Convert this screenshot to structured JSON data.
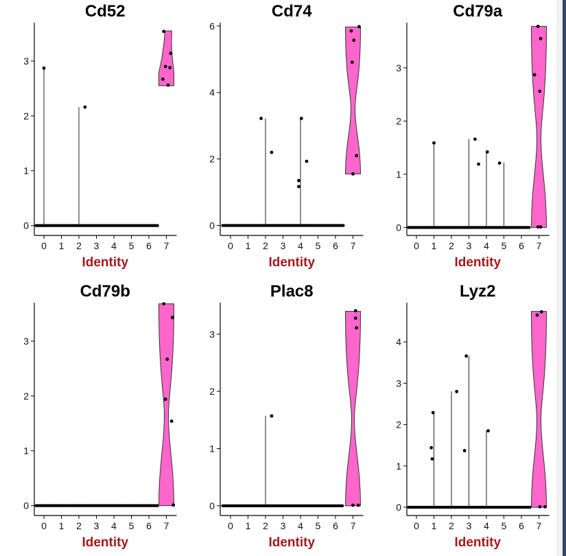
{
  "chart_data": [
    {
      "type": "violin",
      "title": "Cd52",
      "xlabel": "Identity",
      "categories": [
        "0",
        "1",
        "2",
        "3",
        "4",
        "5",
        "6",
        "7"
      ],
      "yticks": [
        0,
        1,
        2,
        3
      ],
      "ylim": [
        -0.18,
        3.7
      ],
      "fill_color": "#ff66cc",
      "lines": [
        {
          "x": 0,
          "max": 2.87
        },
        {
          "x": 2,
          "max": 2.16
        }
      ],
      "zero_extent": [
        -0.45,
        6.5
      ],
      "violin": {
        "x": 7,
        "min": 2.55,
        "max": 3.55
      },
      "points": [
        [
          0,
          2.87
        ],
        [
          2.35,
          2.16
        ],
        [
          6.85,
          3.54
        ],
        [
          7.25,
          3.14
        ],
        [
          6.95,
          2.9
        ],
        [
          7.2,
          2.88
        ],
        [
          6.8,
          2.67
        ],
        [
          7.1,
          2.56
        ]
      ]
    },
    {
      "type": "violin",
      "title": "Cd74",
      "xlabel": "Identity",
      "categories": [
        "0",
        "1",
        "2",
        "3",
        "4",
        "5",
        "6",
        "7"
      ],
      "yticks": [
        0,
        2,
        4,
        6
      ],
      "ylim": [
        -0.3,
        6.1
      ],
      "fill_color": "#ff66cc",
      "lines": [
        {
          "x": 2,
          "max": 3.22
        },
        {
          "x": 4,
          "max": 3.22
        }
      ],
      "zero_extent": [
        -0.45,
        6.45
      ],
      "violin": {
        "x": 7,
        "min": 1.55,
        "max": 5.97
      },
      "points": [
        [
          1.75,
          3.22
        ],
        [
          2.35,
          2.2
        ],
        [
          4.05,
          3.22
        ],
        [
          3.9,
          1.35
        ],
        [
          3.9,
          1.17
        ],
        [
          4.35,
          1.93
        ],
        [
          7.35,
          5.98
        ],
        [
          6.9,
          5.85
        ],
        [
          7.05,
          5.57
        ],
        [
          6.95,
          4.91
        ],
        [
          7.2,
          2.1
        ],
        [
          7.0,
          1.55
        ]
      ]
    },
    {
      "type": "violin",
      "title": "Cd79a",
      "xlabel": "Identity",
      "categories": [
        "0",
        "1",
        "2",
        "3",
        "4",
        "5",
        "6",
        "7"
      ],
      "yticks": [
        0,
        1,
        2,
        3
      ],
      "ylim": [
        -0.15,
        3.85
      ],
      "fill_color": "#ff66cc",
      "lines": [
        {
          "x": 1,
          "max": 1.59
        },
        {
          "x": 3,
          "max": 1.66
        },
        {
          "x": 4,
          "max": 1.42
        },
        {
          "x": 5,
          "max": 1.22
        }
      ],
      "zero_extent": [
        -0.45,
        6.45
      ],
      "violin": {
        "x": 7,
        "min": 0,
        "max": 3.78
      },
      "points": [
        [
          1.0,
          1.59
        ],
        [
          3.35,
          1.66
        ],
        [
          3.55,
          1.19
        ],
        [
          4.05,
          1.42
        ],
        [
          4.75,
          1.21
        ],
        [
          6.95,
          3.78
        ],
        [
          7.1,
          3.55
        ],
        [
          6.75,
          2.87
        ],
        [
          7.05,
          2.56
        ],
        [
          6.95,
          0.01
        ],
        [
          7.1,
          0.01
        ]
      ]
    },
    {
      "type": "violin",
      "title": "Cd79b",
      "xlabel": "Identity",
      "categories": [
        "0",
        "1",
        "2",
        "3",
        "4",
        "5",
        "6",
        "7"
      ],
      "yticks": [
        0,
        1,
        2,
        3
      ],
      "ylim": [
        -0.18,
        3.7
      ],
      "fill_color": "#ff66cc",
      "lines": [],
      "zero_extent": [
        -0.45,
        6.5
      ],
      "violin": {
        "x": 7,
        "min": 0,
        "max": 3.68
      },
      "points": [
        [
          6.85,
          3.68
        ],
        [
          7.35,
          3.43
        ],
        [
          7.05,
          2.67
        ],
        [
          6.95,
          1.94
        ],
        [
          7.3,
          1.54
        ],
        [
          7.4,
          0.01
        ]
      ]
    },
    {
      "type": "violin",
      "title": "Plac8",
      "xlabel": "Identity",
      "categories": [
        "0",
        "1",
        "2",
        "3",
        "4",
        "5",
        "6",
        "7"
      ],
      "yticks": [
        0,
        1,
        2,
        3
      ],
      "ylim": [
        -0.17,
        3.55
      ],
      "fill_color": "#ff66cc",
      "lines": [
        {
          "x": 2,
          "max": 1.57
        }
      ],
      "zero_extent": [
        -0.45,
        6.4
      ],
      "violin": {
        "x": 7,
        "min": 0,
        "max": 3.4
      },
      "points": [
        [
          2.35,
          1.57
        ],
        [
          7.15,
          3.41
        ],
        [
          7.15,
          3.28
        ],
        [
          7.2,
          3.11
        ],
        [
          7.0,
          0.01
        ],
        [
          7.3,
          0.01
        ]
      ]
    },
    {
      "type": "violin",
      "title": "Lyz2",
      "xlabel": "Identity",
      "categories": [
        "0",
        "1",
        "2",
        "3",
        "4",
        "5",
        "6",
        "7"
      ],
      "yticks": [
        0,
        1,
        2,
        3,
        4
      ],
      "ylim": [
        -0.2,
        4.95
      ],
      "fill_color": "#ff66cc",
      "lines": [
        {
          "x": 1,
          "max": 2.27
        },
        {
          "x": 2,
          "max": 2.8
        },
        {
          "x": 3,
          "max": 3.66
        },
        {
          "x": 4,
          "max": 1.85
        }
      ],
      "zero_extent": [
        -0.45,
        6.5
      ],
      "violin": {
        "x": 7,
        "min": 0,
        "max": 4.74
      },
      "points": [
        [
          0.95,
          2.29
        ],
        [
          0.85,
          1.44
        ],
        [
          0.9,
          1.17
        ],
        [
          2.3,
          2.8
        ],
        [
          2.85,
          3.66
        ],
        [
          2.75,
          1.37
        ],
        [
          4.1,
          1.85
        ],
        [
          6.9,
          4.65
        ],
        [
          7.15,
          4.73
        ],
        [
          7.05,
          0.01
        ],
        [
          7.35,
          0.01
        ]
      ]
    }
  ]
}
